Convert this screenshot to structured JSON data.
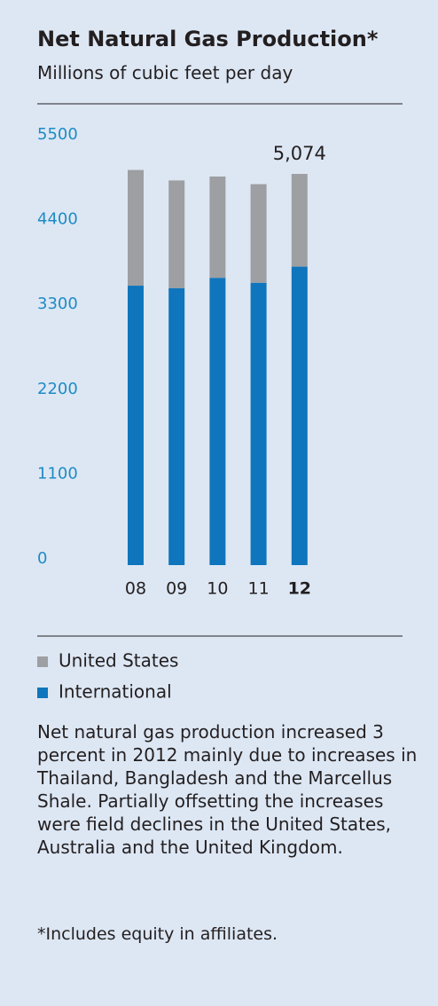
{
  "chart_data": {
    "type": "stacked_bar",
    "title": "Net Natural Gas Production*",
    "subtitle": "Millions of cubic feet per day",
    "categories": [
      "08",
      "09",
      "10",
      "11",
      "12"
    ],
    "series": [
      {
        "name": "International",
        "color": "#0f75bc",
        "values": [
          3624,
          3590,
          3726,
          3662,
          3871
        ]
      },
      {
        "name": "United States",
        "color": "#9d9fa2",
        "values": [
          1501,
          1399,
          1314,
          1279,
          1203
        ]
      }
    ],
    "annotation": "5,074",
    "ylim": [
      0,
      5500
    ],
    "yticks": [
      0,
      1100,
      2200,
      3300,
      4400,
      5500
    ],
    "grid": false,
    "note": "Net natural gas production increased 3 percent in 2012 mainly due to increases in Thailand, Bangladesh and the Marcellus Shale. Partially offsetting the increases were field declines in the United States, Australia and the United Kingdom.",
    "footnote": "*Includes equity in affiliates."
  }
}
